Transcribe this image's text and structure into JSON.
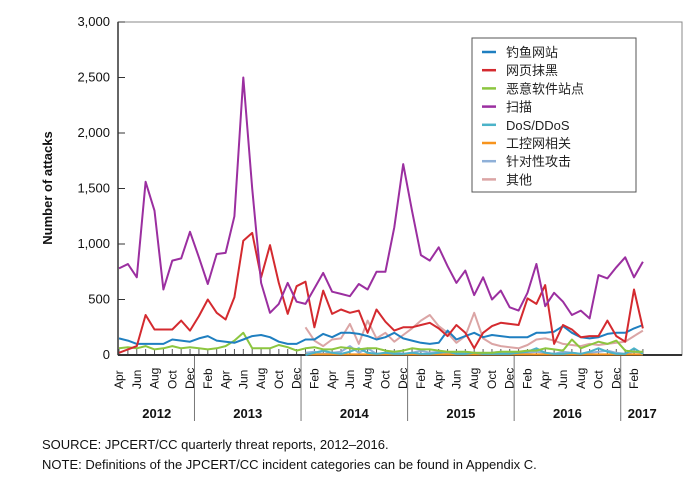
{
  "chart_data": {
    "type": "line",
    "ylabel": "Number of attacks",
    "ylim": [
      0,
      3000
    ],
    "yticks": [
      "0",
      "500",
      "1,000",
      "1,500",
      "2,000",
      "2,500",
      "3,000"
    ],
    "ytick_values": [
      0,
      500,
      1000,
      1500,
      2000,
      2500,
      3000
    ],
    "x_start": "Apr 2012",
    "month_labels": [
      {
        "i": 0,
        "t": "Apr"
      },
      {
        "i": 2,
        "t": "Jun"
      },
      {
        "i": 4,
        "t": "Aug"
      },
      {
        "i": 6,
        "t": "Oct"
      },
      {
        "i": 8,
        "t": "Dec"
      },
      {
        "i": 10,
        "t": "Feb"
      },
      {
        "i": 12,
        "t": "Apr"
      },
      {
        "i": 14,
        "t": "Jun"
      },
      {
        "i": 16,
        "t": "Aug"
      },
      {
        "i": 18,
        "t": "Oct"
      },
      {
        "i": 20,
        "t": "Dec"
      },
      {
        "i": 22,
        "t": "Feb"
      },
      {
        "i": 24,
        "t": "Apr"
      },
      {
        "i": 26,
        "t": "Jun"
      },
      {
        "i": 28,
        "t": "Aug"
      },
      {
        "i": 30,
        "t": "Oct"
      },
      {
        "i": 32,
        "t": "Dec"
      },
      {
        "i": 34,
        "t": "Feb"
      },
      {
        "i": 36,
        "t": "Apr"
      },
      {
        "i": 38,
        "t": "Jun"
      },
      {
        "i": 40,
        "t": "Aug"
      },
      {
        "i": 42,
        "t": "Oct"
      },
      {
        "i": 44,
        "t": "Dec"
      },
      {
        "i": 46,
        "t": "Feb"
      },
      {
        "i": 48,
        "t": "Apr"
      },
      {
        "i": 50,
        "t": "Jun"
      },
      {
        "i": 52,
        "t": "Aug"
      },
      {
        "i": 54,
        "t": "Oct"
      },
      {
        "i": 56,
        "t": "Dec"
      },
      {
        "i": 58,
        "t": "Feb"
      }
    ],
    "years": [
      {
        "t": "2012",
        "from": 0,
        "to": 8.5
      },
      {
        "t": "2013",
        "from": 8.5,
        "to": 20.5
      },
      {
        "t": "2014",
        "from": 20.5,
        "to": 32.5
      },
      {
        "t": "2015",
        "from": 32.5,
        "to": 44.5
      },
      {
        "t": "2016",
        "from": 44.5,
        "to": 56.5
      },
      {
        "t": "2017",
        "from": 56.5,
        "to": 60
      }
    ],
    "legend_position": "top-right",
    "series": [
      {
        "name": "钓鱼网站",
        "color": "#1f7fc0",
        "values": [
          150,
          130,
          100,
          100,
          100,
          100,
          140,
          130,
          120,
          150,
          170,
          130,
          120,
          110,
          140,
          170,
          180,
          160,
          120,
          100,
          100,
          140,
          140,
          190,
          160,
          200,
          200,
          190,
          170,
          140,
          160,
          200,
          150,
          130,
          110,
          100,
          110,
          220,
          140,
          170,
          200,
          160,
          180,
          170,
          160,
          160,
          160,
          200,
          200,
          210,
          260,
          200,
          160,
          150,
          160,
          190,
          200,
          200,
          240,
          270
        ]
      },
      {
        "name": "网页抹黑",
        "color": "#d42a2f",
        "values": [
          20,
          50,
          80,
          360,
          230,
          230,
          230,
          310,
          220,
          350,
          500,
          380,
          320,
          520,
          1030,
          1100,
          700,
          990,
          650,
          370,
          620,
          660,
          250,
          580,
          370,
          410,
          380,
          400,
          200,
          410,
          300,
          220,
          250,
          250,
          270,
          290,
          240,
          170,
          270,
          200,
          60,
          200,
          260,
          290,
          280,
          270,
          510,
          460,
          630,
          100,
          270,
          230,
          160,
          170,
          170,
          310,
          170,
          120,
          590,
          240
        ]
      },
      {
        "name": "恶意软件站点",
        "color": "#8cc63f",
        "values": [
          60,
          70,
          60,
          80,
          50,
          60,
          80,
          60,
          70,
          60,
          50,
          60,
          80,
          130,
          200,
          60,
          60,
          60,
          90,
          70,
          40,
          60,
          70,
          50,
          50,
          70,
          60,
          50,
          60,
          60,
          40,
          30,
          40,
          60,
          50,
          50,
          40,
          30,
          30,
          30,
          20,
          20,
          20,
          30,
          30,
          30,
          40,
          40,
          60,
          50,
          40,
          140,
          60,
          90,
          120,
          100,
          130,
          40,
          30,
          30
        ]
      },
      {
        "name": "扫描",
        "color": "#9b2fa0",
        "values": [
          780,
          820,
          700,
          1560,
          1300,
          590,
          850,
          870,
          1110,
          880,
          640,
          910,
          920,
          1250,
          2500,
          1500,
          650,
          380,
          460,
          650,
          480,
          460,
          600,
          740,
          570,
          550,
          530,
          640,
          590,
          750,
          750,
          1150,
          1720,
          1300,
          900,
          850,
          970,
          800,
          650,
          760,
          540,
          700,
          500,
          580,
          430,
          400,
          560,
          820,
          440,
          560,
          480,
          360,
          400,
          330,
          720,
          690,
          790,
          880,
          700,
          840
        ]
      },
      {
        "name": "DoS/DDoS",
        "color": "#4bb3c9",
        "values": [
          null,
          null,
          null,
          null,
          null,
          null,
          null,
          null,
          null,
          null,
          null,
          null,
          null,
          null,
          null,
          null,
          null,
          null,
          null,
          null,
          null,
          0,
          20,
          40,
          20,
          10,
          30,
          60,
          20,
          10,
          20,
          10,
          10,
          20,
          10,
          10,
          20,
          30,
          10,
          10,
          20,
          10,
          10,
          10,
          10,
          20,
          30,
          60,
          20,
          10,
          10,
          20,
          10,
          30,
          60,
          30,
          10,
          10,
          60,
          10
        ]
      },
      {
        "name": "工控网相关",
        "color": "#f7941d",
        "values": [
          null,
          null,
          null,
          null,
          null,
          null,
          null,
          null,
          null,
          null,
          null,
          null,
          null,
          null,
          null,
          null,
          null,
          null,
          null,
          null,
          null,
          5,
          5,
          5,
          5,
          5,
          5,
          5,
          5,
          5,
          5,
          5,
          5,
          5,
          5,
          5,
          5,
          5,
          5,
          5,
          5,
          5,
          5,
          5,
          5,
          5,
          5,
          5,
          5,
          5,
          5,
          5,
          5,
          5,
          5,
          5,
          5,
          5,
          5,
          5
        ]
      },
      {
        "name": "针对性攻击",
        "color": "#8fb0d8",
        "values": [
          null,
          null,
          null,
          null,
          null,
          null,
          null,
          null,
          null,
          null,
          null,
          null,
          null,
          null,
          null,
          null,
          null,
          null,
          null,
          null,
          null,
          20,
          30,
          10,
          20,
          30,
          80,
          20,
          60,
          10,
          20,
          30,
          10,
          20,
          40,
          20,
          30,
          20,
          10,
          30,
          20,
          10,
          20,
          30,
          20,
          10,
          20,
          30,
          20,
          10,
          30,
          20,
          10,
          20,
          30,
          40,
          20,
          10,
          30,
          20
        ]
      },
      {
        "name": "其他",
        "color": "#dba5a5",
        "values": [
          null,
          null,
          null,
          null,
          null,
          null,
          null,
          null,
          null,
          null,
          null,
          null,
          null,
          null,
          null,
          null,
          null,
          null,
          null,
          null,
          null,
          250,
          130,
          80,
          140,
          150,
          280,
          100,
          310,
          150,
          200,
          120,
          180,
          240,
          310,
          360,
          260,
          200,
          110,
          170,
          380,
          150,
          100,
          80,
          70,
          60,
          90,
          140,
          150,
          130,
          100,
          90,
          80,
          100,
          90,
          100,
          110,
          120,
          170,
          220
        ]
      }
    ]
  },
  "notes": {
    "source": "SOURCE: JPCERT/CC quarterly threat reports, 2012–2016.",
    "note": "NOTE: Definitions of the JPCERT/CC incident categories can be found in Appendix C."
  }
}
